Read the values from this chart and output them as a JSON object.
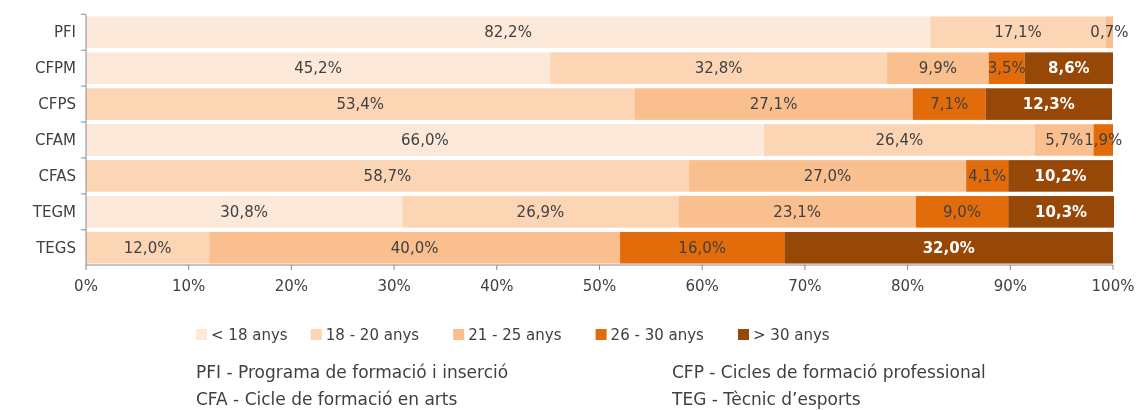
{
  "chart_data": {
    "type": "bar",
    "orientation": "horizontal",
    "stacked": true,
    "categories": [
      "PFI",
      "CFPM",
      "CFPS",
      "CFAM",
      "CFAS",
      "TEGM",
      "TEGS"
    ],
    "series": [
      {
        "name": "< 18 anys",
        "color": "#fde9da",
        "values": [
          82.2,
          45.2,
          null,
          66.0,
          null,
          30.8,
          null
        ],
        "value_labels": [
          "82,2%",
          "45,2%",
          null,
          "66,0%",
          null,
          "30,8%",
          null
        ]
      },
      {
        "name": "18 - 20 anys",
        "color": "#fcd5b5",
        "values": [
          17.1,
          32.8,
          53.4,
          26.4,
          58.7,
          26.9,
          12.0
        ],
        "value_labels": [
          "17,1%",
          "32,8%",
          "53,4%",
          "26,4%",
          "58,7%",
          "26,9%",
          "12,0%"
        ]
      },
      {
        "name": "21 - 25 anys",
        "color": "#f9bf8f",
        "values": [
          0.7,
          9.9,
          27.1,
          5.7,
          27.0,
          23.1,
          40.0
        ],
        "value_labels": [
          "0,7%",
          "9,9%",
          "27,1%",
          "5,7%",
          "27,0%",
          "23,1%",
          "40,0%"
        ]
      },
      {
        "name": "26 - 30 anys",
        "color": "#e36c0a",
        "values": [
          null,
          3.5,
          7.1,
          1.9,
          4.1,
          9.0,
          16.0
        ],
        "value_labels": [
          null,
          "3,5%",
          "7,1%",
          "1,9%",
          "4,1%",
          "9,0%",
          "16,0%"
        ]
      },
      {
        "name": "> 30 anys",
        "color": "#974706",
        "values": [
          null,
          8.6,
          12.3,
          null,
          10.2,
          10.3,
          32.0
        ],
        "value_labels": [
          null,
          "8,6%",
          "12,3%",
          null,
          "10,2%",
          "10,3%",
          "32,0%"
        ]
      }
    ],
    "xlim": [
      0,
      100
    ],
    "xticks": [
      {
        "value": 0,
        "label": "0%"
      },
      {
        "value": 10,
        "label": "10%"
      },
      {
        "value": 20,
        "label": "20%"
      },
      {
        "value": 30,
        "label": "30%"
      },
      {
        "value": 40,
        "label": "40%"
      },
      {
        "value": 50,
        "label": "50%"
      },
      {
        "value": 60,
        "label": "60%"
      },
      {
        "value": 70,
        "label": "70%"
      },
      {
        "value": 80,
        "label": "80%"
      },
      {
        "value": 90,
        "label": "90%"
      },
      {
        "value": 100,
        "label": "100%"
      }
    ],
    "legend": "bottom",
    "annotations": [
      "PFI - Programa de formació i inserció",
      "CFP - Cicles de formació professional",
      "CFA - Cicle de formació en arts",
      "TEG - Tècnic d’esports"
    ]
  }
}
